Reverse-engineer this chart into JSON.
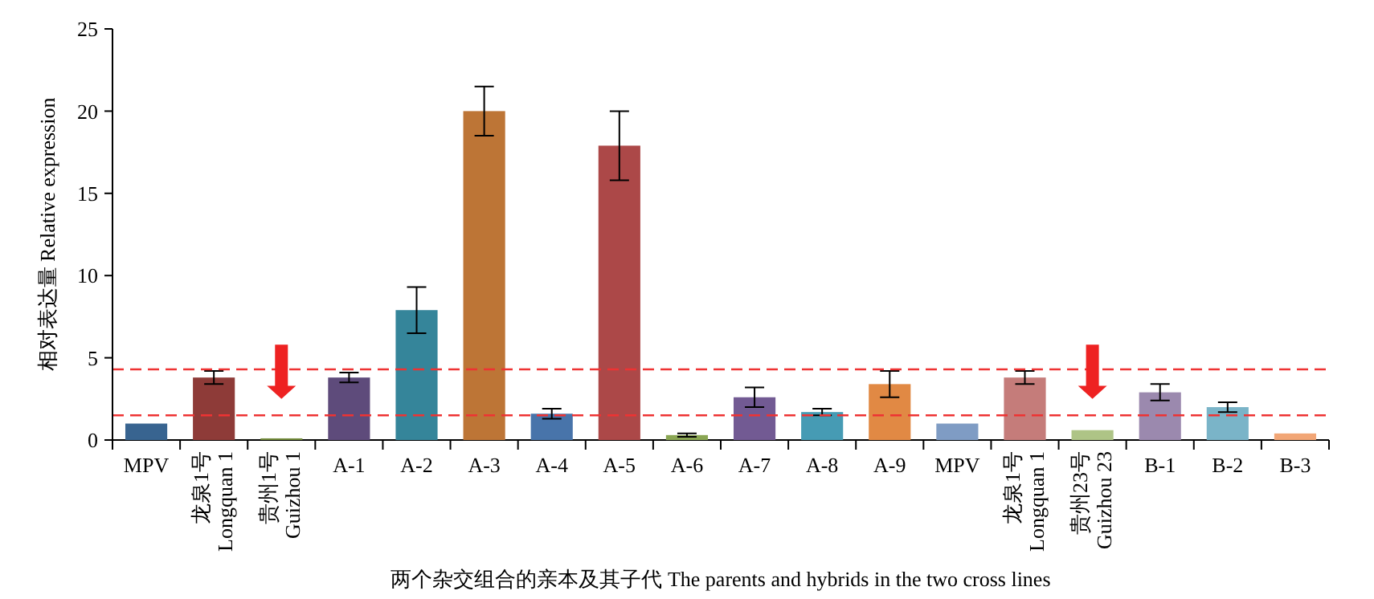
{
  "chart_data": {
    "type": "bar",
    "categories": [
      "MPV",
      "龙泉1号\nLongquan 1",
      "贵州1号\nGuizhou 1",
      "A-1",
      "A-2",
      "A-3",
      "A-4",
      "A-5",
      "A-6",
      "A-7",
      "A-8",
      "A-9",
      "MPV",
      "龙泉1号\nLongquan 1",
      "贵州23号\nGuizhou 23",
      "B-1",
      "B-2",
      "B-3"
    ],
    "values": [
      1.0,
      3.8,
      0.1,
      3.8,
      7.9,
      20.0,
      1.6,
      17.9,
      0.3,
      2.6,
      1.7,
      3.4,
      1.0,
      3.8,
      0.6,
      2.9,
      2.0,
      0.4
    ],
    "errors": [
      null,
      0.4,
      null,
      0.3,
      1.4,
      1.5,
      0.3,
      2.1,
      0.1,
      0.6,
      0.2,
      0.8,
      null,
      0.4,
      null,
      0.5,
      0.3,
      null
    ],
    "colors": [
      "#386490",
      "#8e3b38",
      "#71893a",
      "#5e4b7b",
      "#35859a",
      "#bd7536",
      "#4874aa",
      "#ac4848",
      "#8aa653",
      "#725a93",
      "#469bb4",
      "#e18944",
      "#7f9cc4",
      "#c57c7a",
      "#aec486",
      "#9b89ae",
      "#7ab4c8",
      "#f2a676"
    ],
    "xlabel": "两个杂交组合的亲本及其子代 The parents and hybrids in the two cross lines",
    "ylabel": "相对表达量 Relative expression",
    "ylim": [
      0,
      25
    ],
    "yticks": [
      0,
      5,
      10,
      15,
      20,
      25
    ],
    "ref_lines": [
      {
        "axis": "y",
        "value": 4.3,
        "color": "#ee3333",
        "line_style": "dashed"
      },
      {
        "axis": "y",
        "value": 1.5,
        "color": "#ee3333",
        "line_style": "dashed"
      }
    ],
    "grid": false
  }
}
